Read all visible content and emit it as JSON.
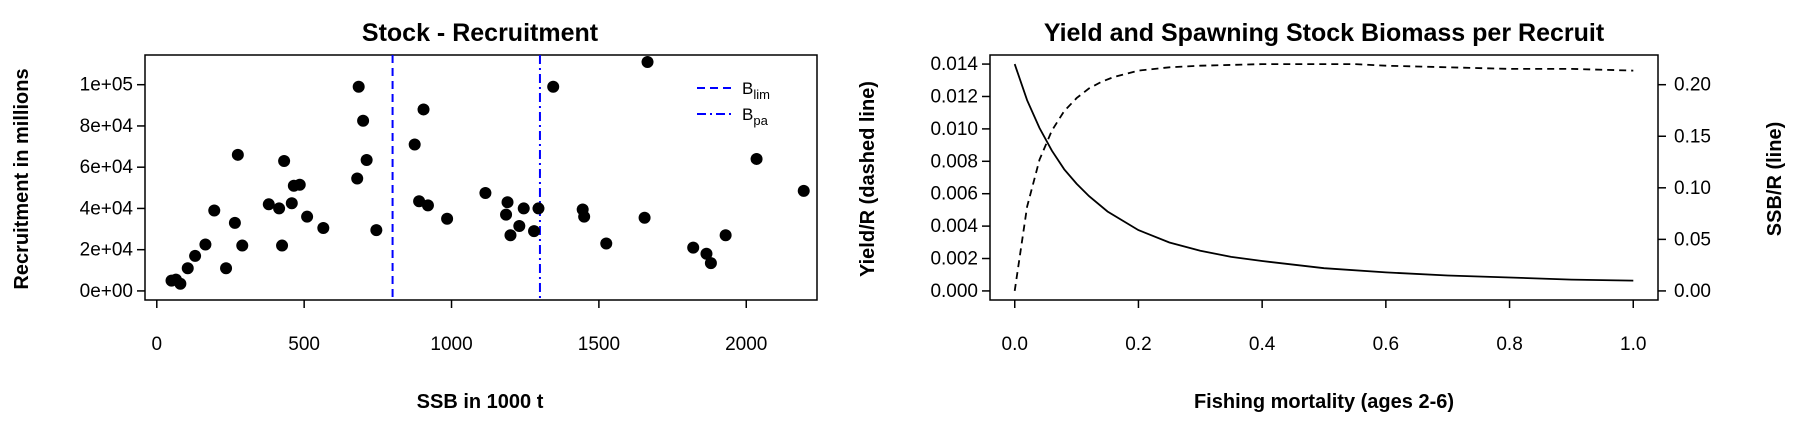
{
  "chart_data": [
    {
      "type": "scatter",
      "title": "Stock - Recruitment",
      "xlabel": "SSB in 1000 t",
      "ylabel": "Recruitment in millions",
      "xlim": [
        0,
        2200
      ],
      "ylim": [
        0,
        110000
      ],
      "x_ticks": [
        0,
        500,
        1000,
        1500,
        2000
      ],
      "x_tick_labels": [
        "0",
        "500",
        "1000",
        "1500",
        "2000"
      ],
      "y_ticks": [
        0,
        20000,
        40000,
        60000,
        80000,
        100000
      ],
      "y_tick_labels": [
        "0e+00",
        "2e+04",
        "4e+04",
        "6e+04",
        "8e+04",
        "1e+05"
      ],
      "grid": false,
      "legend_position": "top-right",
      "legend": [
        {
          "base": "B",
          "sub": "lim",
          "line": "dashed",
          "color": "#0000ff"
        },
        {
          "base": "B",
          "sub": "pa",
          "line": "dashdot",
          "color": "#0000ff"
        }
      ],
      "reference_lines": [
        {
          "x": 800,
          "style": "dashed",
          "color": "#0000ff"
        },
        {
          "x": 1300,
          "style": "dashdot",
          "color": "#0000ff"
        }
      ],
      "points": [
        {
          "x": 50,
          "y": 5000
        },
        {
          "x": 65,
          "y": 5500
        },
        {
          "x": 80,
          "y": 3500
        },
        {
          "x": 105,
          "y": 11000
        },
        {
          "x": 130,
          "y": 17000
        },
        {
          "x": 165,
          "y": 22500
        },
        {
          "x": 195,
          "y": 39000
        },
        {
          "x": 235,
          "y": 11000
        },
        {
          "x": 265,
          "y": 33000
        },
        {
          "x": 275,
          "y": 66000
        },
        {
          "x": 290,
          "y": 22000
        },
        {
          "x": 380,
          "y": 42000
        },
        {
          "x": 415,
          "y": 40000
        },
        {
          "x": 425,
          "y": 22000
        },
        {
          "x": 432,
          "y": 63000
        },
        {
          "x": 458,
          "y": 42500
        },
        {
          "x": 465,
          "y": 51000
        },
        {
          "x": 485,
          "y": 51500
        },
        {
          "x": 510,
          "y": 36000
        },
        {
          "x": 565,
          "y": 30500
        },
        {
          "x": 680,
          "y": 54500
        },
        {
          "x": 685,
          "y": 99000
        },
        {
          "x": 700,
          "y": 82500
        },
        {
          "x": 712,
          "y": 63500
        },
        {
          "x": 745,
          "y": 29500
        },
        {
          "x": 875,
          "y": 71000
        },
        {
          "x": 890,
          "y": 43500
        },
        {
          "x": 905,
          "y": 88000
        },
        {
          "x": 920,
          "y": 41500
        },
        {
          "x": 985,
          "y": 35000
        },
        {
          "x": 1115,
          "y": 47500
        },
        {
          "x": 1185,
          "y": 37000
        },
        {
          "x": 1190,
          "y": 43000
        },
        {
          "x": 1200,
          "y": 27000
        },
        {
          "x": 1230,
          "y": 31500
        },
        {
          "x": 1245,
          "y": 40000
        },
        {
          "x": 1280,
          "y": 29000
        },
        {
          "x": 1295,
          "y": 40000
        },
        {
          "x": 1345,
          "y": 99000
        },
        {
          "x": 1445,
          "y": 39500
        },
        {
          "x": 1450,
          "y": 36000
        },
        {
          "x": 1525,
          "y": 23000
        },
        {
          "x": 1655,
          "y": 35500
        },
        {
          "x": 1665,
          "y": 111000
        },
        {
          "x": 1820,
          "y": 21000
        },
        {
          "x": 1865,
          "y": 18000
        },
        {
          "x": 1880,
          "y": 13500
        },
        {
          "x": 1930,
          "y": 27000
        },
        {
          "x": 2035,
          "y": 64000
        },
        {
          "x": 2195,
          "y": 48500
        }
      ]
    },
    {
      "type": "line",
      "title": "Yield and Spawning Stock Biomass per Recruit",
      "xlabel": "Fishing mortality (ages 2-6)",
      "ylabel": "Yield/R (dashed line)",
      "ylabel_right": "SSB/R (line)",
      "xlim": [
        0,
        1
      ],
      "ylim": [
        0,
        0.014
      ],
      "ylim_right": [
        0,
        0.22
      ],
      "x_ticks": [
        0,
        0.2,
        0.4,
        0.6,
        0.8,
        1.0
      ],
      "x_tick_labels": [
        "0.0",
        "0.2",
        "0.4",
        "0.6",
        "0.8",
        "1.0"
      ],
      "y_ticks": [
        0,
        0.002,
        0.004,
        0.006,
        0.008,
        0.01,
        0.012,
        0.014
      ],
      "y_tick_labels": [
        "0.000",
        "0.002",
        "0.004",
        "0.006",
        "0.008",
        "0.010",
        "0.012",
        "0.014"
      ],
      "y_right_ticks": [
        0,
        0.05,
        0.1,
        0.15,
        0.2
      ],
      "y_right_tick_labels": [
        "0.00",
        "0.05",
        "0.10",
        "0.15",
        "0.20"
      ],
      "grid": false,
      "series": [
        {
          "axis": "left",
          "style": "dashed",
          "x": [
            0,
            0.02,
            0.04,
            0.06,
            0.08,
            0.1,
            0.12,
            0.14,
            0.16,
            0.18,
            0.2,
            0.25,
            0.3,
            0.35,
            0.4,
            0.45,
            0.5,
            0.55,
            0.6,
            0.65,
            0.7,
            0.8,
            0.9,
            1.0
          ],
          "y": [
            0,
            0.0052,
            0.0081,
            0.0099,
            0.0111,
            0.0119,
            0.0125,
            0.0129,
            0.0132,
            0.0134,
            0.0136,
            0.0138,
            0.0139,
            0.01395,
            0.014,
            0.014,
            0.014,
            0.014,
            0.0139,
            0.01385,
            0.0138,
            0.0137,
            0.0137,
            0.0136
          ]
        },
        {
          "axis": "right",
          "style": "solid",
          "x": [
            0,
            0.02,
            0.04,
            0.06,
            0.08,
            0.1,
            0.12,
            0.15,
            0.2,
            0.25,
            0.3,
            0.35,
            0.4,
            0.5,
            0.6,
            0.7,
            0.8,
            0.9,
            1.0
          ],
          "y": [
            0.22,
            0.185,
            0.158,
            0.136,
            0.118,
            0.104,
            0.092,
            0.077,
            0.059,
            0.047,
            0.039,
            0.033,
            0.029,
            0.022,
            0.018,
            0.015,
            0.013,
            0.011,
            0.01
          ]
        }
      ]
    }
  ]
}
